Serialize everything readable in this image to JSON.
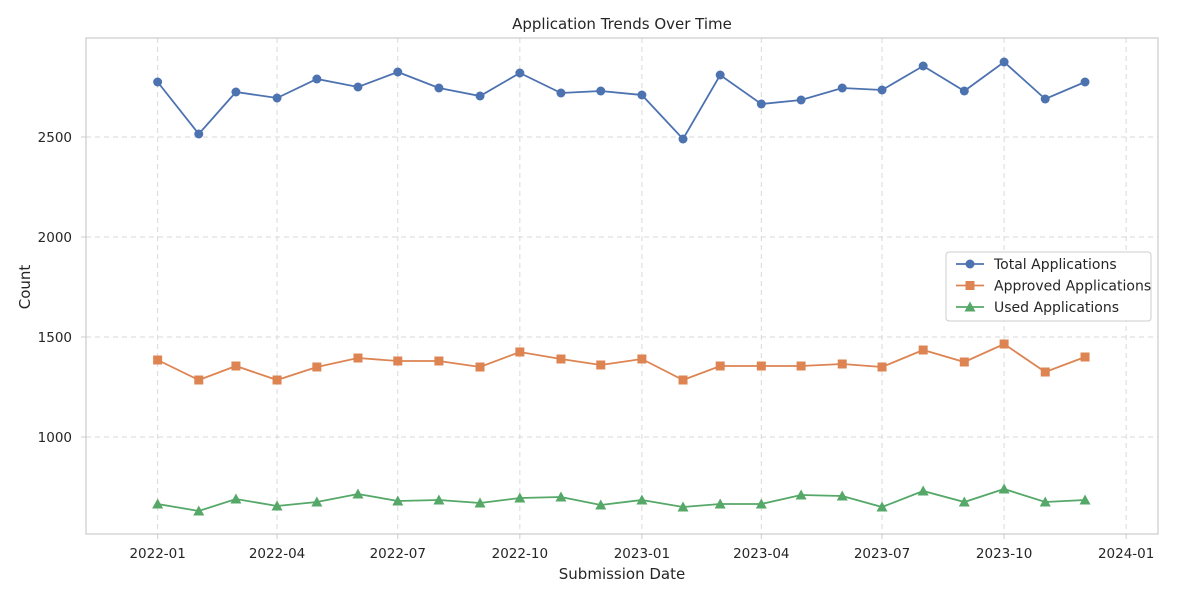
{
  "chart_data": {
    "type": "line",
    "title": "Application Trends Over Time",
    "xlabel": "Submission Date",
    "ylabel": "Count",
    "x": [
      "2022-01-01",
      "2022-02-01",
      "2022-03-01",
      "2022-04-01",
      "2022-05-01",
      "2022-06-01",
      "2022-07-01",
      "2022-08-01",
      "2022-09-01",
      "2022-10-01",
      "2022-11-01",
      "2022-12-01",
      "2023-01-01",
      "2023-02-01",
      "2023-03-01",
      "2023-04-01",
      "2023-05-01",
      "2023-06-01",
      "2023-07-01",
      "2023-08-01",
      "2023-09-01",
      "2023-10-01",
      "2023-11-01",
      "2023-12-01"
    ],
    "xlim": [
      "2021-11-08",
      "2024-01-25"
    ],
    "ylim": [
      515,
      2995
    ],
    "x_ticks": [
      "2022-01",
      "2022-04",
      "2022-07",
      "2022-10",
      "2023-01",
      "2023-04",
      "2023-07",
      "2023-10",
      "2024-01"
    ],
    "y_ticks": [
      1000,
      1500,
      2000,
      2500
    ],
    "grid": true,
    "legend_position": "center-right",
    "series": [
      {
        "name": "Total Applications",
        "marker": "circle",
        "color": "#4c72b0",
        "values": [
          2775,
          2515,
          2725,
          2695,
          2790,
          2750,
          2825,
          2745,
          2705,
          2820,
          2720,
          2730,
          2710,
          2490,
          2810,
          2665,
          2685,
          2745,
          2735,
          2855,
          2730,
          2875,
          2690,
          2775
        ]
      },
      {
        "name": "Approved Applications",
        "marker": "square",
        "color": "#dd8452",
        "values": [
          1385,
          1285,
          1355,
          1285,
          1350,
          1395,
          1380,
          1380,
          1350,
          1425,
          1390,
          1360,
          1390,
          1285,
          1355,
          1355,
          1355,
          1365,
          1350,
          1435,
          1375,
          1465,
          1325,
          1400
        ]
      },
      {
        "name": "Used Applications",
        "marker": "triangle",
        "color": "#55a868",
        "values": [
          665,
          630,
          690,
          655,
          675,
          715,
          680,
          685,
          670,
          695,
          700,
          660,
          685,
          650,
          665,
          665,
          710,
          705,
          650,
          730,
          675,
          740,
          675,
          685
        ]
      }
    ]
  }
}
